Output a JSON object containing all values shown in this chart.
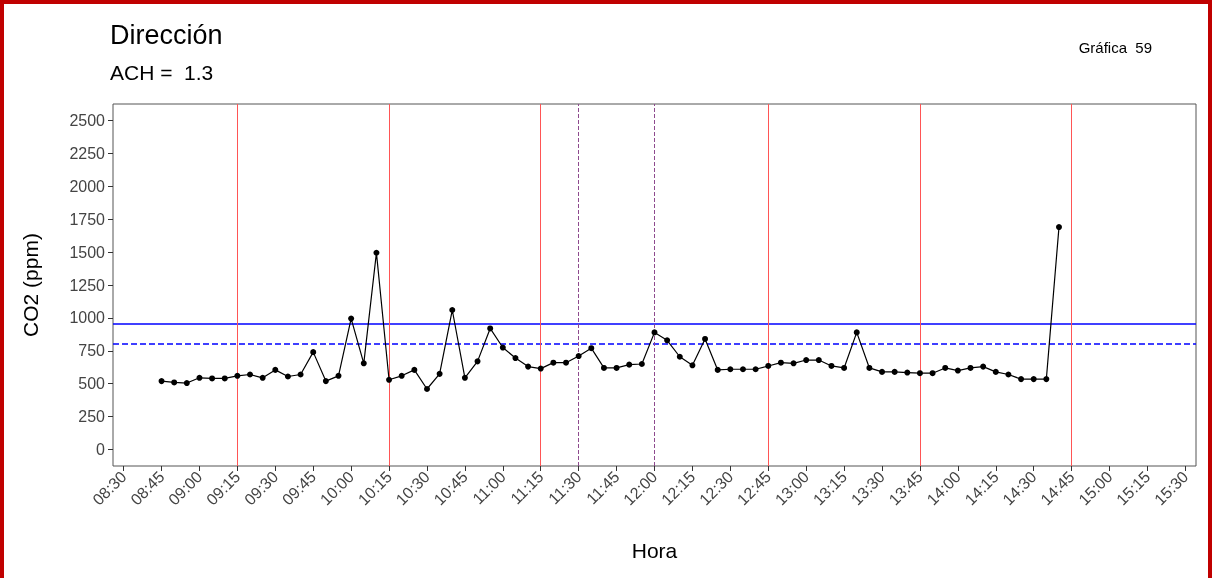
{
  "chart_data": {
    "type": "line",
    "title": "Dirección",
    "subtitle": "ACH =  1.3",
    "xlabel": "Hora",
    "ylabel": "CO2 (ppm)",
    "annotations": [
      "Gráfica  59"
    ],
    "x": [
      8.75,
      8.8333,
      8.9167,
      9,
      9.0833,
      9.1667,
      9.25,
      9.3333,
      9.4167,
      9.5,
      9.5833,
      9.6667,
      9.75,
      9.8333,
      9.9167,
      10,
      10.0833,
      10.1667,
      10.25,
      10.3333,
      10.4167,
      10.5,
      10.5833,
      10.6667,
      10.75,
      10.8333,
      10.9167,
      11,
      11.0833,
      11.1667,
      11.25,
      11.3333,
      11.4167,
      11.5,
      11.5833,
      11.6667,
      11.75,
      11.8333,
      11.9167,
      12,
      12.0833,
      12.1667,
      12.25,
      12.3333,
      12.4167,
      12.5,
      12.5833,
      12.6667,
      12.75,
      12.8333,
      12.9167,
      13,
      13.0833,
      13.1667,
      13.25,
      13.3333,
      13.4167,
      13.5,
      13.5833,
      13.6667,
      13.75,
      13.8333,
      13.9167,
      14,
      14.0833,
      14.1667,
      14.25,
      14.3333,
      14.4167,
      14.5,
      14.5833,
      14.6667
    ],
    "series": [
      {
        "color": "#000000",
        "values": [
          520,
          510,
          505,
          545,
          540,
          540,
          560,
          570,
          545,
          605,
          555,
          570,
          740,
          520,
          560,
          995,
          655,
          1495,
          530,
          560,
          605,
          460,
          575,
          1060,
          545,
          670,
          920,
          775,
          695,
          630,
          615,
          660,
          660,
          710,
          770,
          620,
          620,
          645,
          650,
          890,
          830,
          705,
          640,
          840,
          605,
          610,
          610,
          610,
          635,
          660,
          655,
          680,
          680,
          635,
          620,
          890,
          620,
          590,
          590,
          585,
          580,
          580,
          620,
          600,
          620,
          630,
          590,
          570,
          535,
          535,
          535,
          1690
        ]
      }
    ],
    "xlim": [
      8.43,
      15.57
    ],
    "xticks": [
      {
        "value": 8.5,
        "label": "08:30"
      },
      {
        "value": 8.75,
        "label": "08:45"
      },
      {
        "value": 9,
        "label": "09:00"
      },
      {
        "value": 9.25,
        "label": "09:15"
      },
      {
        "value": 9.5,
        "label": "09:30"
      },
      {
        "value": 9.75,
        "label": "09:45"
      },
      {
        "value": 10,
        "label": "10:00"
      },
      {
        "value": 10.25,
        "label": "10:15"
      },
      {
        "value": 10.5,
        "label": "10:30"
      },
      {
        "value": 10.75,
        "label": "10:45"
      },
      {
        "value": 11,
        "label": "11:00"
      },
      {
        "value": 11.25,
        "label": "11:15"
      },
      {
        "value": 11.5,
        "label": "11:30"
      },
      {
        "value": 11.75,
        "label": "11:45"
      },
      {
        "value": 12,
        "label": "12:00"
      },
      {
        "value": 12.25,
        "label": "12:15"
      },
      {
        "value": 12.5,
        "label": "12:30"
      },
      {
        "value": 12.75,
        "label": "12:45"
      },
      {
        "value": 13,
        "label": "13:00"
      },
      {
        "value": 13.25,
        "label": "13:15"
      },
      {
        "value": 13.5,
        "label": "13:30"
      },
      {
        "value": 13.75,
        "label": "13:45"
      },
      {
        "value": 14,
        "label": "14:00"
      },
      {
        "value": 14.25,
        "label": "14:15"
      },
      {
        "value": 14.5,
        "label": "14:30"
      },
      {
        "value": 14.75,
        "label": "14:45"
      },
      {
        "value": 15,
        "label": "15:00"
      },
      {
        "value": 15.25,
        "label": "15:15"
      },
      {
        "value": 15.5,
        "label": "15:30"
      }
    ],
    "ylim": [
      -125,
      2625
    ],
    "yticks": [
      0,
      250,
      500,
      750,
      1000,
      1250,
      1500,
      1750,
      2000,
      2250,
      2500
    ],
    "ref_lines": [
      {
        "axis": "y",
        "value": 955,
        "color": "#0000ff",
        "line_style": "solid"
      },
      {
        "axis": "y",
        "value": 800,
        "color": "#0000ff",
        "line_style": "dashed"
      },
      {
        "axis": "x",
        "value": 9.25,
        "color": "#ff5555",
        "line_style": "solid"
      },
      {
        "axis": "x",
        "value": 10.25,
        "color": "#ff5555",
        "line_style": "solid"
      },
      {
        "axis": "x",
        "value": 11.25,
        "color": "#ff5555",
        "line_style": "solid"
      },
      {
        "axis": "x",
        "value": 12.75,
        "color": "#ff5555",
        "line_style": "solid"
      },
      {
        "axis": "x",
        "value": 13.75,
        "color": "#ff5555",
        "line_style": "solid"
      },
      {
        "axis": "x",
        "value": 14.75,
        "color": "#ff5555",
        "line_style": "solid"
      },
      {
        "axis": "x",
        "value": 11.5,
        "color": "#8e4a8e",
        "line_style": "dashed"
      },
      {
        "axis": "x",
        "value": 12,
        "color": "#8e4a8e",
        "line_style": "dashed"
      }
    ],
    "grid": false,
    "marker": "circle",
    "line_style": "solid"
  }
}
